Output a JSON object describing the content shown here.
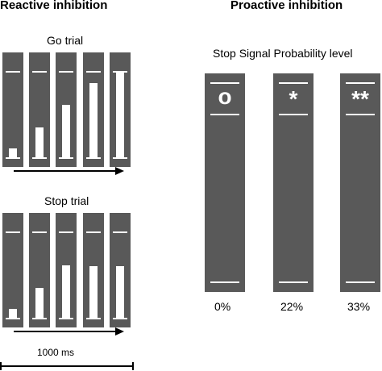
{
  "reactive": {
    "heading": "Reactive inhibition",
    "go_label": "Go trial",
    "stop_label": "Stop trial",
    "go_fill_levels": [
      0.1,
      0.35,
      0.61,
      0.86,
      0.99
    ],
    "stop_fill_levels": [
      0.1,
      0.35,
      0.61,
      0.6,
      0.6
    ],
    "time_label": "1000 ms"
  },
  "proactive": {
    "heading": "Proactive inhibition",
    "level_title": "Stop Signal Probability level",
    "conditions": [
      {
        "symbol": "o",
        "percent": "0%"
      },
      {
        "symbol": "*",
        "percent": "22%"
      },
      {
        "symbol": "**",
        "percent": "33%"
      }
    ]
  },
  "colors": {
    "bar": "#595959",
    "line": "#ffffff",
    "ink": "#000000"
  }
}
